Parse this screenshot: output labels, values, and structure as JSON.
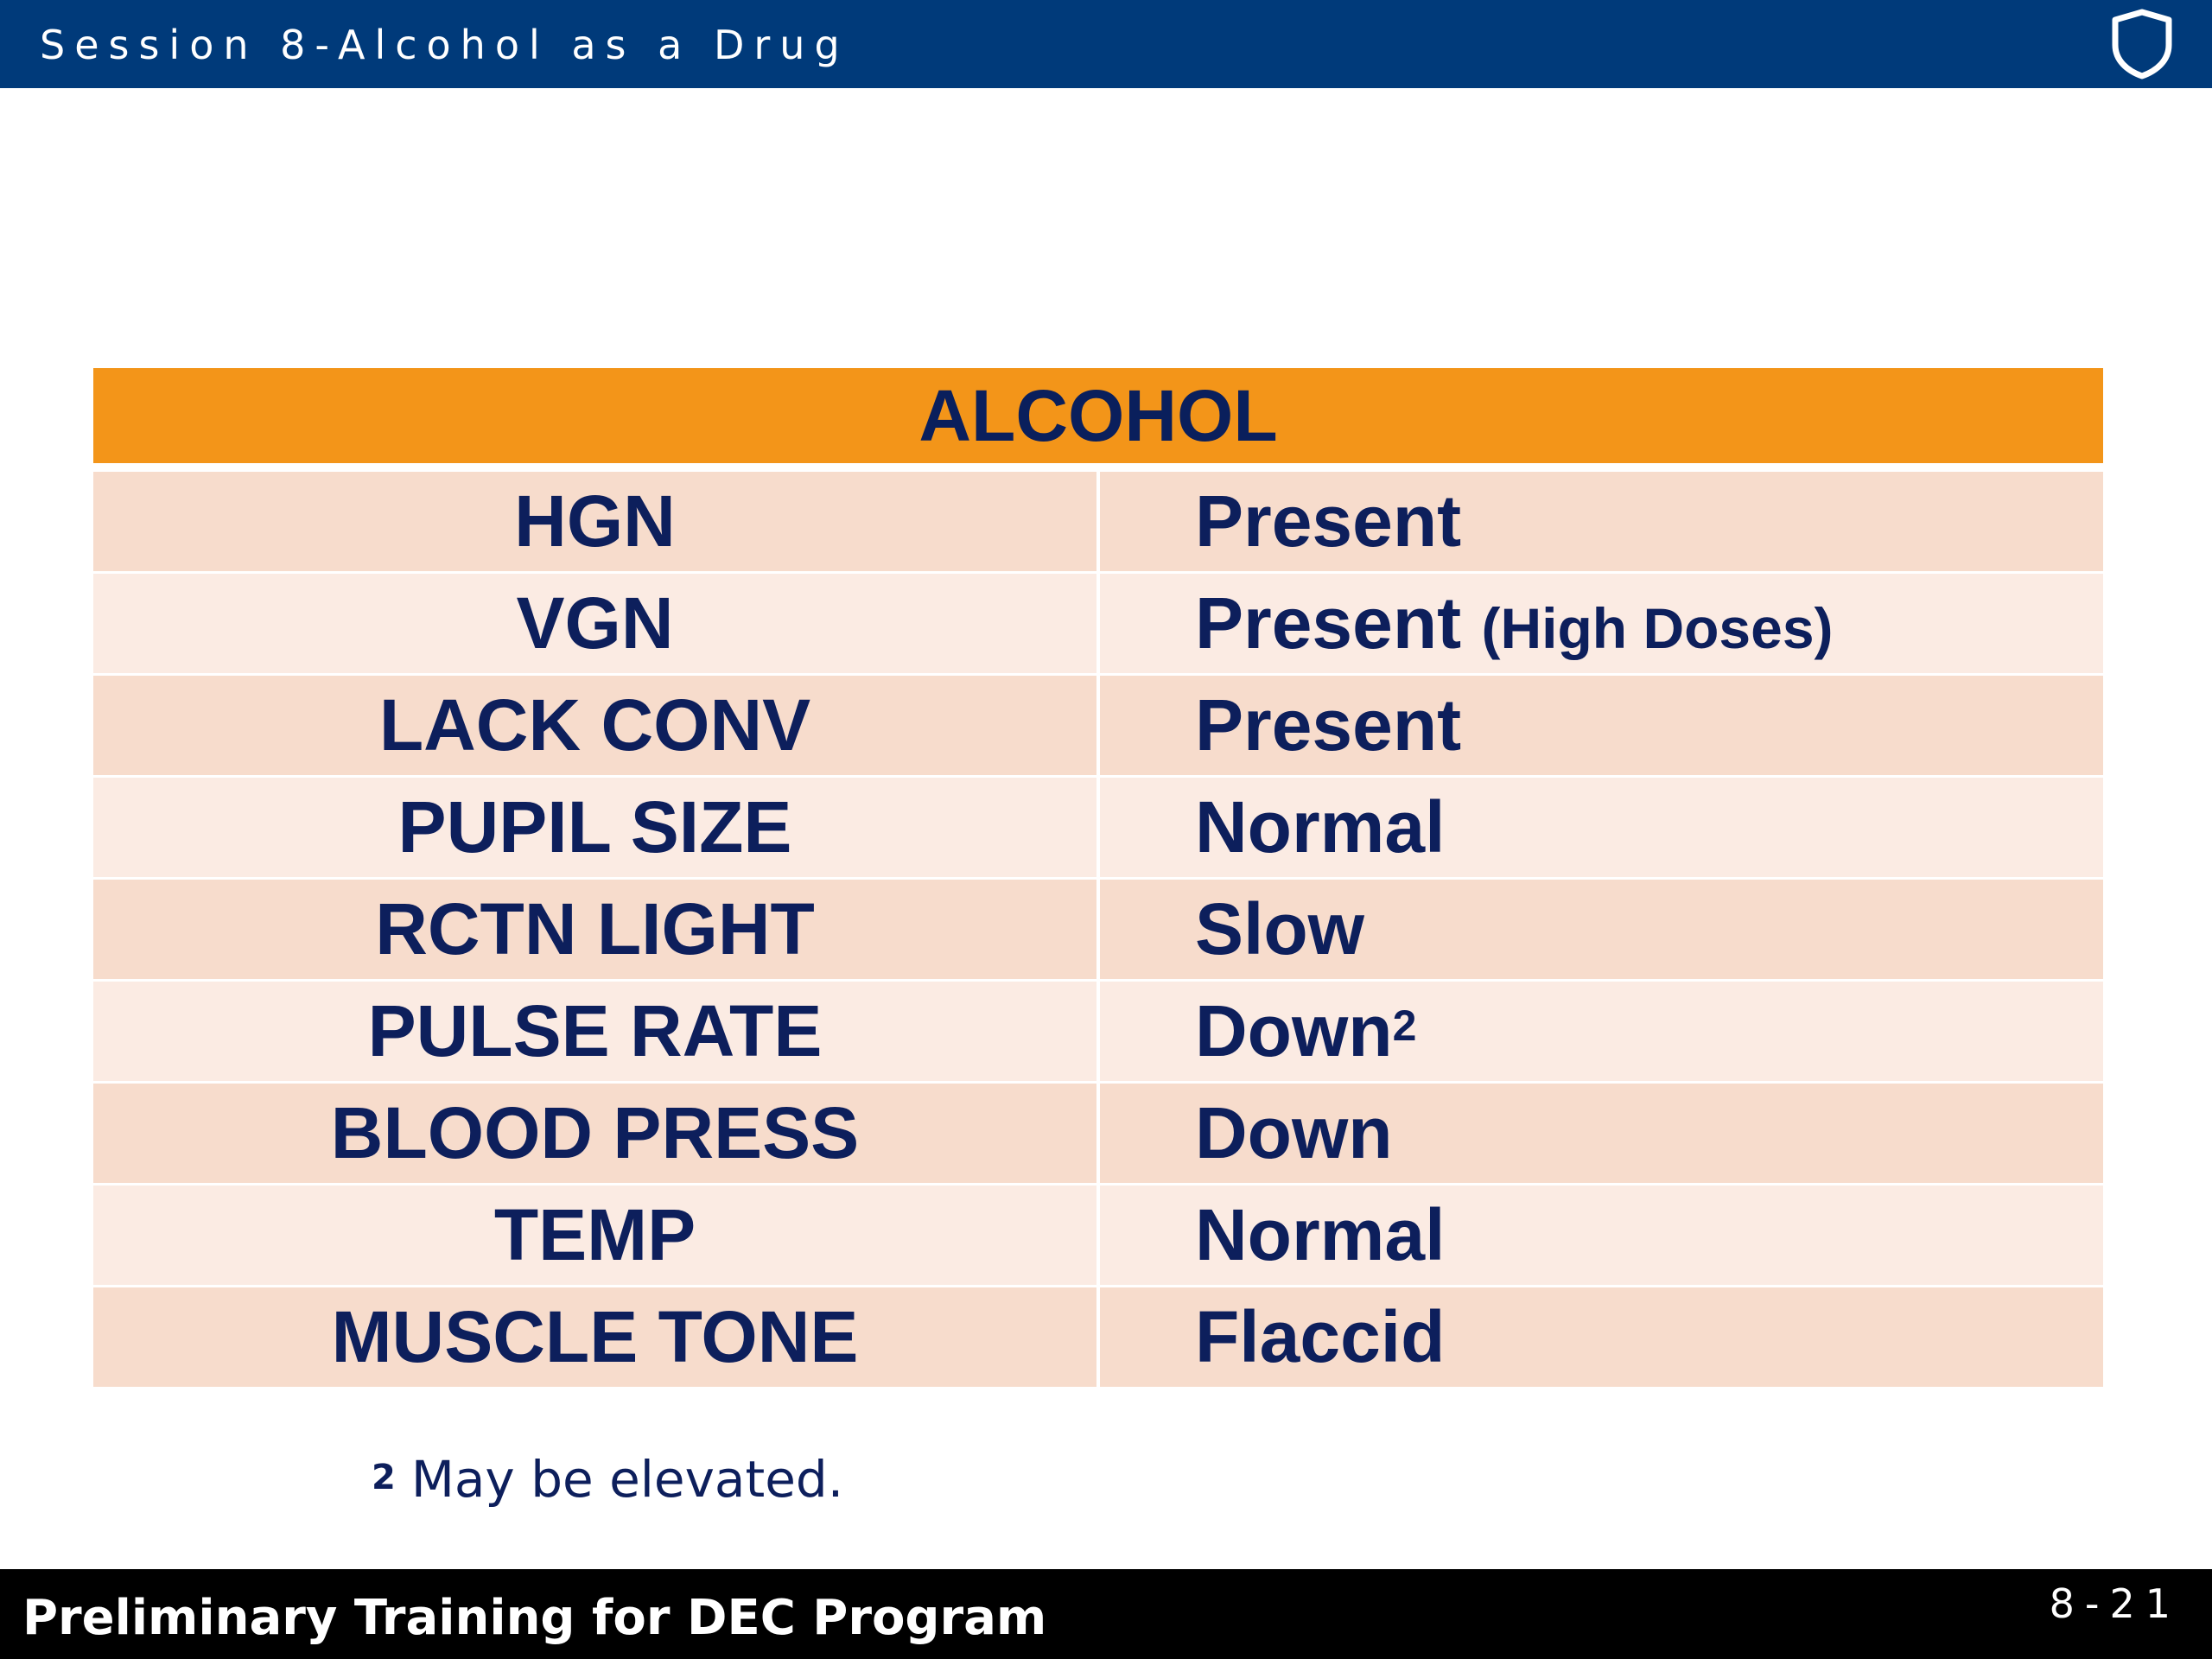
{
  "header": {
    "session_title": "Session 8-Alcohol as a Drug",
    "logo_icon": "shield-icon"
  },
  "table": {
    "title": "ALCOHOL",
    "rows": [
      {
        "label": "HGN",
        "value": "Present",
        "note": "",
        "footnote_ref": ""
      },
      {
        "label": "VGN",
        "value": "Present",
        "note": "(High Doses)",
        "footnote_ref": ""
      },
      {
        "label": "LACK CONV",
        "value": "Present",
        "note": "",
        "footnote_ref": ""
      },
      {
        "label": "PUPIL SIZE",
        "value": "Normal",
        "note": "",
        "footnote_ref": ""
      },
      {
        "label": "RCTN LIGHT",
        "value": "Slow",
        "note": "",
        "footnote_ref": ""
      },
      {
        "label": "PULSE RATE",
        "value": "Down",
        "note": "",
        "footnote_ref": "2"
      },
      {
        "label": "BLOOD PRESS",
        "value": "Down",
        "note": "",
        "footnote_ref": ""
      },
      {
        "label": "TEMP",
        "value": "Normal",
        "note": "",
        "footnote_ref": ""
      },
      {
        "label": "MUSCLE TONE",
        "value": "Flaccid",
        "note": "",
        "footnote_ref": ""
      }
    ]
  },
  "footnote": {
    "mark": "2",
    "text": "May be elevated."
  },
  "footer": {
    "program_title": "Preliminary Training for DEC Program",
    "page_number": "8-21"
  },
  "colors": {
    "header_bg": "#003a7a",
    "table_title_bg": "#f39519",
    "row_dark": "#f7dccc",
    "row_light": "#fbebe3",
    "text_navy": "#0d1f5c",
    "footer_bg": "#000000"
  }
}
